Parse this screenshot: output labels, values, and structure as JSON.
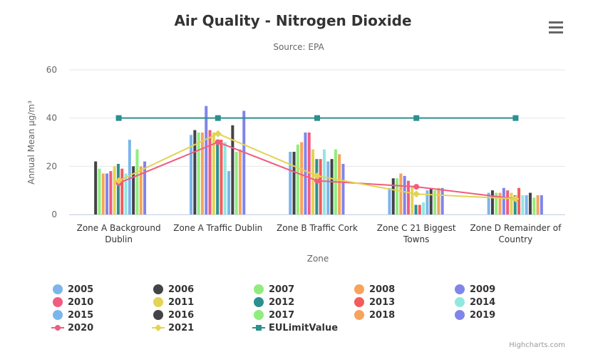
{
  "chart_data": {
    "type": "bar",
    "title": "Air Quality - Nitrogen Dioxide",
    "subtitle": "Source: EPA",
    "y_label": "Annual Mean µg/m³",
    "x_label": "Zone",
    "credits": "Highcharts.com",
    "categories": [
      "Zone A Background Dublin",
      "Zone A Traffic Dublin",
      "Zone B Traffic Cork",
      "Zone C 21 Biggest Towns",
      "Zone D Remainder of Country"
    ],
    "ylim": [
      0,
      60
    ],
    "yticks": [
      0,
      20,
      40,
      60
    ],
    "grid": true,
    "series": [
      {
        "name": "2005",
        "color": "#7cb5ec",
        "values": [
          null,
          33,
          26,
          11,
          9
        ]
      },
      {
        "name": "2006",
        "color": "#434348",
        "values": [
          22,
          35,
          26,
          15,
          10
        ]
      },
      {
        "name": "2007",
        "color": "#90ed7d",
        "values": [
          19,
          34,
          29,
          15,
          9
        ]
      },
      {
        "name": "2008",
        "color": "#f7a35c",
        "values": [
          17,
          34,
          30,
          17,
          9
        ]
      },
      {
        "name": "2009",
        "color": "#8085e9",
        "values": [
          17,
          45,
          34,
          16,
          11
        ]
      },
      {
        "name": "2010",
        "color": "#f15c80",
        "values": [
          18,
          35,
          34,
          14,
          10
        ]
      },
      {
        "name": "2011",
        "color": "#e4d354",
        "values": [
          20,
          34,
          27,
          12,
          9
        ]
      },
      {
        "name": "2012",
        "color": "#2b908f",
        "values": [
          21,
          31,
          23,
          4,
          8
        ]
      },
      {
        "name": "2013",
        "color": "#f45b5b",
        "values": [
          19,
          31,
          23,
          4,
          11
        ]
      },
      {
        "name": "2014",
        "color": "#91e8e1",
        "values": [
          17,
          30,
          27,
          5,
          8
        ]
      },
      {
        "name": "2015",
        "color": "#7cb5ec",
        "values": [
          31,
          18,
          22,
          10,
          8
        ]
      },
      {
        "name": "2016",
        "color": "#434348",
        "values": [
          20,
          37,
          23,
          11,
          9
        ]
      },
      {
        "name": "2017",
        "color": "#90ed7d",
        "values": [
          27,
          26,
          27,
          10,
          7
        ]
      },
      {
        "name": "2018",
        "color": "#f7a35c",
        "values": [
          20,
          27,
          25,
          11,
          8
        ]
      },
      {
        "name": "2019",
        "color": "#8085e9",
        "values": [
          22,
          43,
          21,
          11,
          8
        ]
      },
      {
        "name": "2020",
        "color": "#f15c80",
        "type": "line",
        "marker": "circle",
        "values": [
          13,
          30,
          14,
          11.5,
          6.5
        ]
      },
      {
        "name": "2021",
        "color": "#e4d354",
        "type": "line",
        "marker": "diamond",
        "values": [
          14,
          33.5,
          16,
          8.5,
          6.5
        ]
      },
      {
        "name": "EULimitValue",
        "color": "#2b908f",
        "type": "line",
        "marker": "square",
        "values": [
          40,
          40,
          40,
          40,
          40
        ]
      }
    ]
  }
}
